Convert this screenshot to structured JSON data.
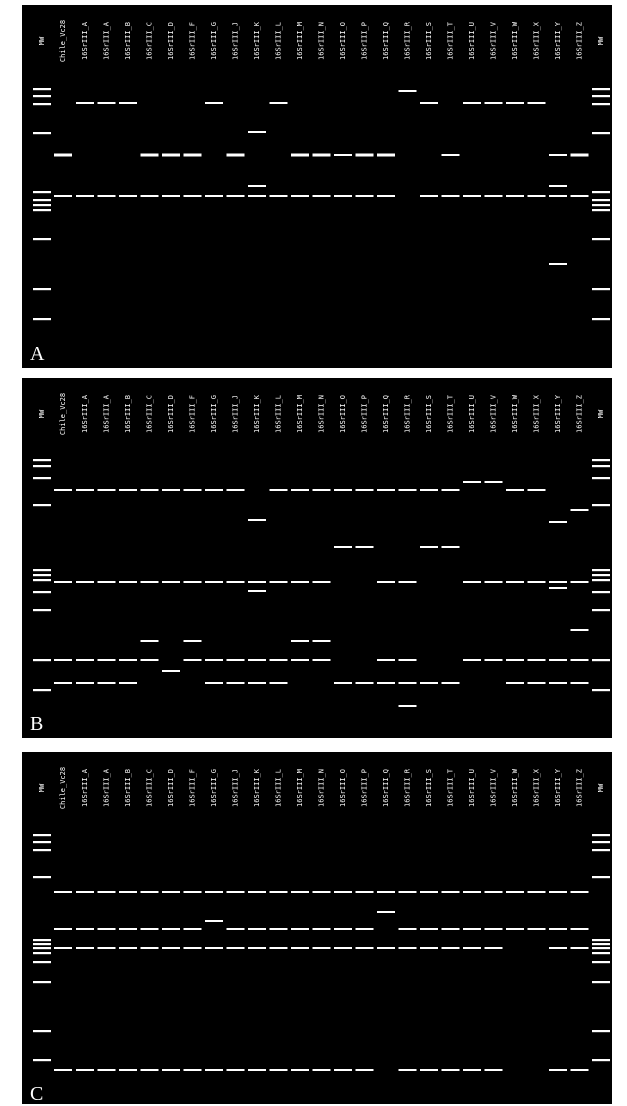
{
  "panels": [
    {
      "label": "A",
      "lanes": [
        "MW",
        "Chile_Vc28",
        "16SrIII_A",
        "16SrIII_A",
        "16SrIII_B",
        "16SrIII_C",
        "16SrIII_D",
        "16SrIII_F",
        "16SrIII_G",
        "16SrIII_J",
        "16SrIII_K",
        "16SrIII_L",
        "16SrIII_M",
        "16SrIII_N",
        "16SrIII_O",
        "16SrIII_P",
        "16SrIII_Q",
        "16SrIII_R",
        "16SrIII_S",
        "16SrIII_T",
        "16SrIII_U",
        "16SrIII_V",
        "16SrIII_W",
        "16SrIII_X",
        "16SrIII_Y",
        "16SrIII_Z",
        "MW"
      ]
    },
    {
      "label": "B",
      "lanes": [
        "MW",
        "Chile_Vc28",
        "16SrIII_A",
        "16SrIII_A",
        "16SrIII_B",
        "16SrIII_C",
        "16SrIII_D",
        "16SrIII_F",
        "16SrIII_G",
        "16SrIII_J",
        "16SrIII_K",
        "16SrIII_L",
        "16SrIII_M",
        "16SrIII_N",
        "16SrIII_O",
        "16SrIII_P",
        "16SrIII_Q",
        "16SrIII_R",
        "16SrIII_S",
        "16SrIII_T",
        "16SrIII_U",
        "16SrIII_V",
        "16SrIII_W",
        "16SrIII_X",
        "16SrIII_Y",
        "16SrIII_Z",
        "MW"
      ]
    },
    {
      "label": "C",
      "lanes": [
        "MW",
        "Chile_Vc28",
        "16SrIII_A",
        "16SrIII_A",
        "16SrIII_B",
        "16SrIII_C",
        "16SrIII_D",
        "16SrIII_F",
        "16SrIII_G",
        "16SrIII_J",
        "16SrIII_K",
        "16SrIII_L",
        "16SrIII_M",
        "16SrIII_N",
        "16SrIII_O",
        "16SrIII_P",
        "16SrIII_Q",
        "16SrIII_R",
        "16SrIII_S",
        "16SrIII_T",
        "16SrIII_U",
        "16SrIII_V",
        "16SrIII_W",
        "16SrIII_X",
        "16SrIII_Y",
        "16SrIII_Z",
        "MW"
      ]
    }
  ]
}
